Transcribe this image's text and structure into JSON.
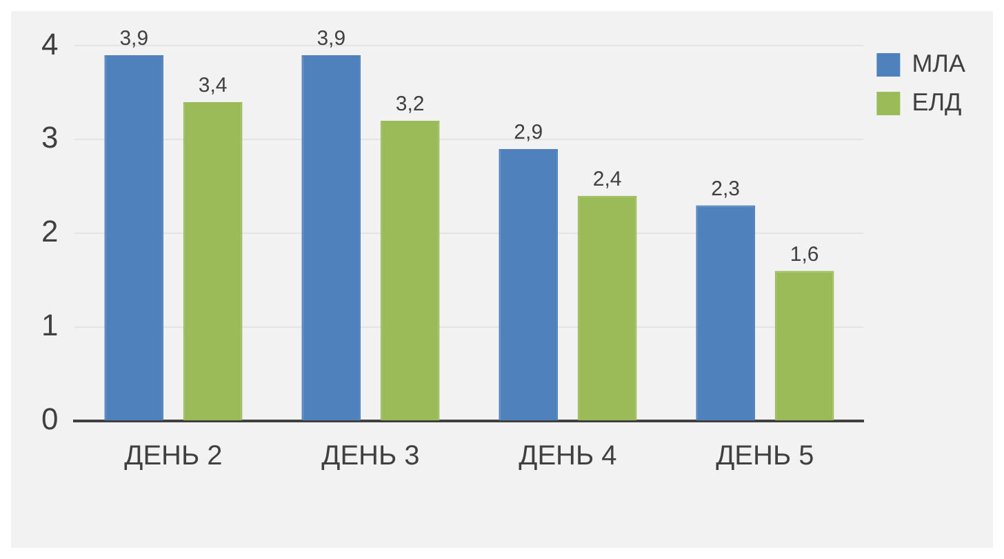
{
  "chart_data": {
    "type": "bar",
    "categories": [
      "ДЕНЬ 2",
      "ДЕНЬ 3",
      "ДЕНЬ 4",
      "ДЕНЬ 5"
    ],
    "series": [
      {
        "name": "МЛА",
        "color": "#4f81bd",
        "values": [
          3.9,
          3.9,
          2.9,
          2.3
        ],
        "value_labels": [
          "3,9",
          "3,9",
          "2,9",
          "2,3"
        ]
      },
      {
        "name": "ЕЛД",
        "color": "#9bbb59",
        "values": [
          3.4,
          3.2,
          2.4,
          1.6
        ],
        "value_labels": [
          "3,4",
          "3,2",
          "2,4",
          "1,6"
        ]
      }
    ],
    "ylim": [
      0,
      4
    ],
    "yticks": [
      0,
      1,
      2,
      3,
      4
    ],
    "grid": "y",
    "legend": "top right"
  }
}
